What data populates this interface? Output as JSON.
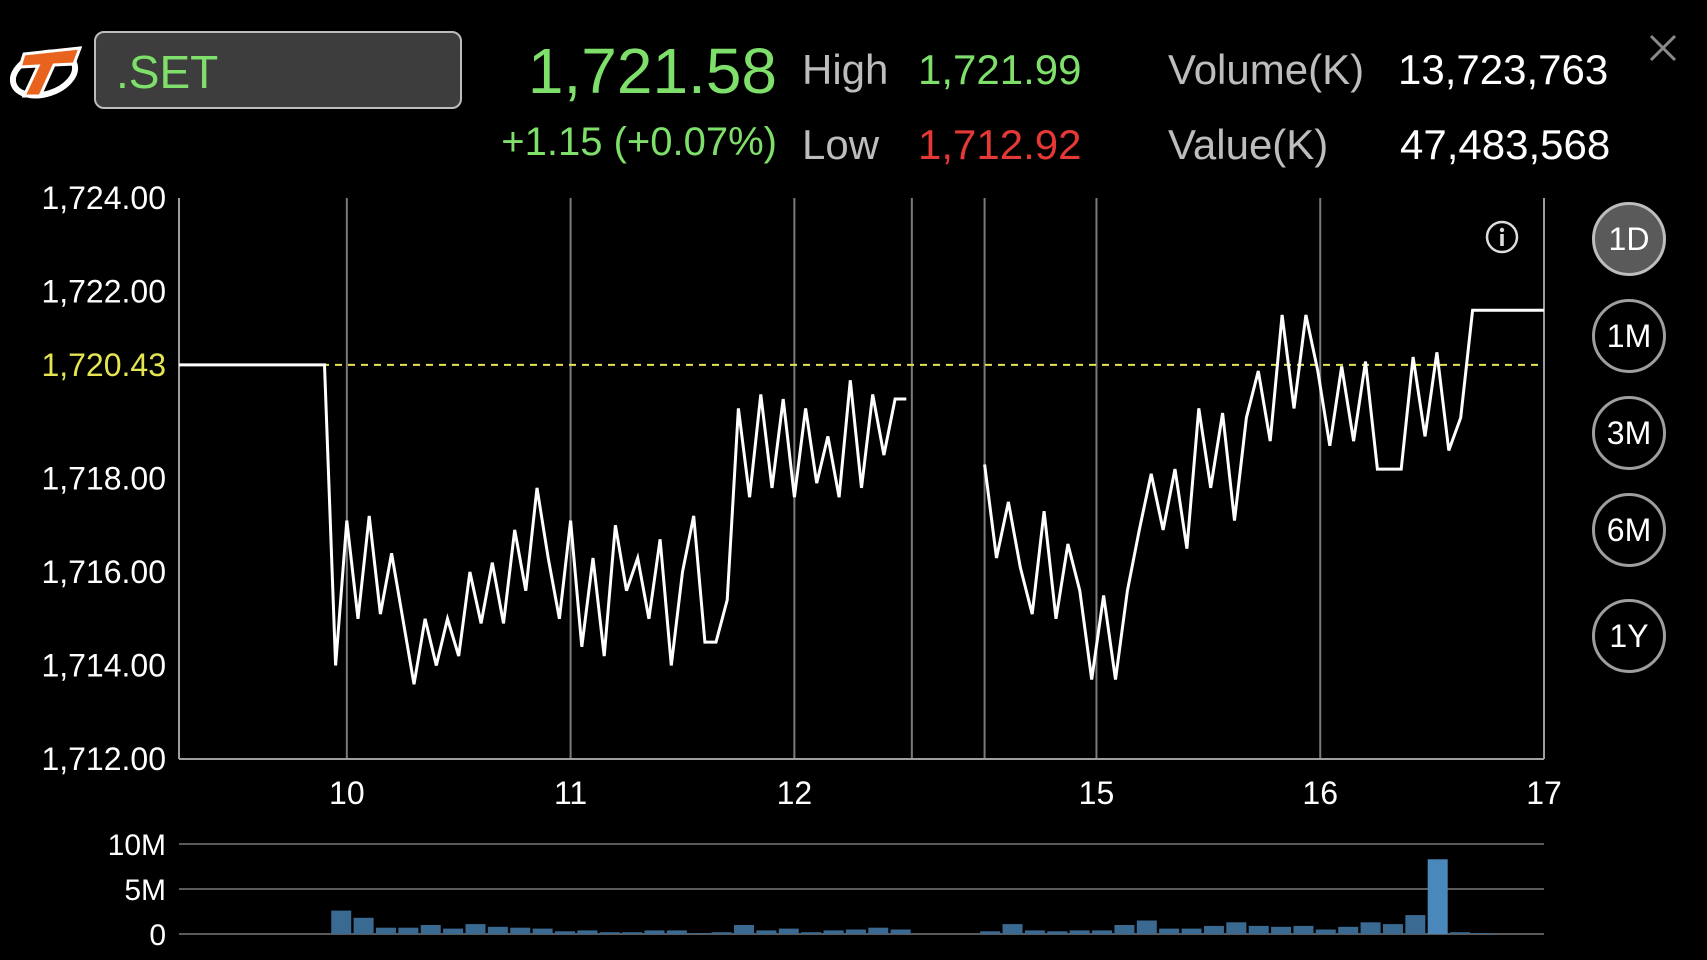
{
  "header": {
    "symbol": ".SET",
    "last": "1,721.58",
    "change": "+1.15 (+0.07%)",
    "high_label": "High",
    "high": "1,721.99",
    "low_label": "Low",
    "low": "1,712.92",
    "volume_label": "Volume(K)",
    "volume": "13,723,763",
    "value_label": "Value(K)",
    "value": "47,483,568"
  },
  "periods": [
    "1D",
    "1M",
    "3M",
    "6M",
    "1Y"
  ],
  "active_period": "1D",
  "colors": {
    "up": "#7ee06a",
    "down": "#e53935",
    "ref": "#e5e552",
    "line": "#ffffff",
    "bar": "#3a6a92",
    "bar_last": "#4a88bb"
  },
  "chart_data": [
    {
      "type": "line",
      "ylim": [
        1712,
        1724
      ],
      "y_ticks": [
        "1,724.00",
        "1,722.00",
        "1,718.00",
        "1,716.00",
        "1,714.00",
        "1,712.00"
      ],
      "y_tick_values": [
        1724,
        1722,
        1718,
        1716,
        1714,
        1712
      ],
      "reference_label": "1,720.43",
      "reference_value": 1720.43,
      "x_ticks": [
        "10",
        "11",
        "12",
        "15",
        "16",
        "17"
      ],
      "segments": [
        {
          "x_start": 0,
          "x_end": 6.5,
          "values": [
            1720.43,
            1720.43,
            1720.43,
            1720.43,
            1720.43,
            1720.43,
            1720.43,
            1720.43,
            1720.43,
            1720.43,
            1720.43,
            1720.43,
            1720.43,
            1720.43,
            1714.0,
            1717.1,
            1715.0,
            1717.2,
            1715.1,
            1716.4,
            1715.0,
            1713.6,
            1715.0,
            1714.0,
            1715.0,
            1714.2,
            1716.0,
            1714.9,
            1716.2,
            1714.9,
            1716.9,
            1715.6,
            1717.8,
            1716.3,
            1715.0,
            1717.1,
            1714.4,
            1716.3,
            1714.2,
            1717.0,
            1715.6,
            1716.3,
            1715.0,
            1716.7,
            1714.0,
            1716.0,
            1717.2,
            1714.5,
            1714.5,
            1715.4,
            1719.5,
            1717.6,
            1719.8,
            1717.8,
            1719.7,
            1717.6,
            1719.5,
            1717.9,
            1718.9,
            1717.6,
            1720.1,
            1717.8,
            1719.8,
            1718.5,
            1719.7,
            1719.7
          ]
        },
        {
          "x_start": 7.2,
          "x_end": 12.2,
          "values": [
            1718.3,
            1716.3,
            1717.5,
            1716.1,
            1715.1,
            1717.3,
            1715.0,
            1716.6,
            1715.6,
            1713.7,
            1715.5,
            1713.7,
            1715.6,
            1716.9,
            1718.1,
            1716.9,
            1718.2,
            1716.5,
            1719.5,
            1717.8,
            1719.4,
            1717.1,
            1719.3,
            1720.3,
            1718.8,
            1721.5,
            1719.5,
            1721.5,
            1720.3,
            1718.7,
            1720.4,
            1718.8,
            1720.5,
            1718.2,
            1718.2,
            1718.2,
            1720.6,
            1718.9,
            1720.7,
            1718.6,
            1719.3,
            1721.6,
            1721.6,
            1721.6,
            1721.6,
            1721.6,
            1721.6,
            1721.6
          ]
        }
      ]
    },
    {
      "type": "bar",
      "ylim": [
        0,
        10
      ],
      "y_ticks": [
        "10M",
        "5M",
        "0"
      ],
      "y_tick_values": [
        10,
        5,
        0
      ],
      "bars": [
        {
          "x": 1.45,
          "value": 2.6
        },
        {
          "x": 1.65,
          "value": 1.8
        },
        {
          "x": 1.85,
          "value": 0.7
        },
        {
          "x": 2.05,
          "value": 0.7
        },
        {
          "x": 2.25,
          "value": 1.0
        },
        {
          "x": 2.45,
          "value": 0.6
        },
        {
          "x": 2.65,
          "value": 1.1
        },
        {
          "x": 2.85,
          "value": 0.8
        },
        {
          "x": 3.05,
          "value": 0.7
        },
        {
          "x": 3.25,
          "value": 0.6
        },
        {
          "x": 3.45,
          "value": 0.3
        },
        {
          "x": 3.65,
          "value": 0.4
        },
        {
          "x": 3.85,
          "value": 0.2
        },
        {
          "x": 4.05,
          "value": 0.2
        },
        {
          "x": 4.25,
          "value": 0.4
        },
        {
          "x": 4.45,
          "value": 0.4
        },
        {
          "x": 4.65,
          "value": 0.1
        },
        {
          "x": 4.85,
          "value": 0.2
        },
        {
          "x": 5.05,
          "value": 1.0
        },
        {
          "x": 5.25,
          "value": 0.4
        },
        {
          "x": 5.45,
          "value": 0.6
        },
        {
          "x": 5.65,
          "value": 0.2
        },
        {
          "x": 5.85,
          "value": 0.4
        },
        {
          "x": 6.05,
          "value": 0.5
        },
        {
          "x": 6.25,
          "value": 0.7
        },
        {
          "x": 6.45,
          "value": 0.5
        },
        {
          "x": 7.25,
          "value": 0.3
        },
        {
          "x": 7.45,
          "value": 1.1
        },
        {
          "x": 7.65,
          "value": 0.4
        },
        {
          "x": 7.85,
          "value": 0.3
        },
        {
          "x": 8.05,
          "value": 0.4
        },
        {
          "x": 8.25,
          "value": 0.4
        },
        {
          "x": 8.45,
          "value": 1.0
        },
        {
          "x": 8.65,
          "value": 1.5
        },
        {
          "x": 8.85,
          "value": 0.6
        },
        {
          "x": 9.05,
          "value": 0.6
        },
        {
          "x": 9.25,
          "value": 0.9
        },
        {
          "x": 9.45,
          "value": 1.3
        },
        {
          "x": 9.65,
          "value": 0.9
        },
        {
          "x": 9.85,
          "value": 0.8
        },
        {
          "x": 10.05,
          "value": 0.9
        },
        {
          "x": 10.25,
          "value": 0.5
        },
        {
          "x": 10.45,
          "value": 0.8
        },
        {
          "x": 10.65,
          "value": 1.3
        },
        {
          "x": 10.85,
          "value": 1.1
        },
        {
          "x": 11.05,
          "value": 2.1
        },
        {
          "x": 11.25,
          "value": 8.3
        },
        {
          "x": 11.45,
          "value": 0.2
        },
        {
          "x": 11.65,
          "value": 0.1
        }
      ]
    }
  ]
}
